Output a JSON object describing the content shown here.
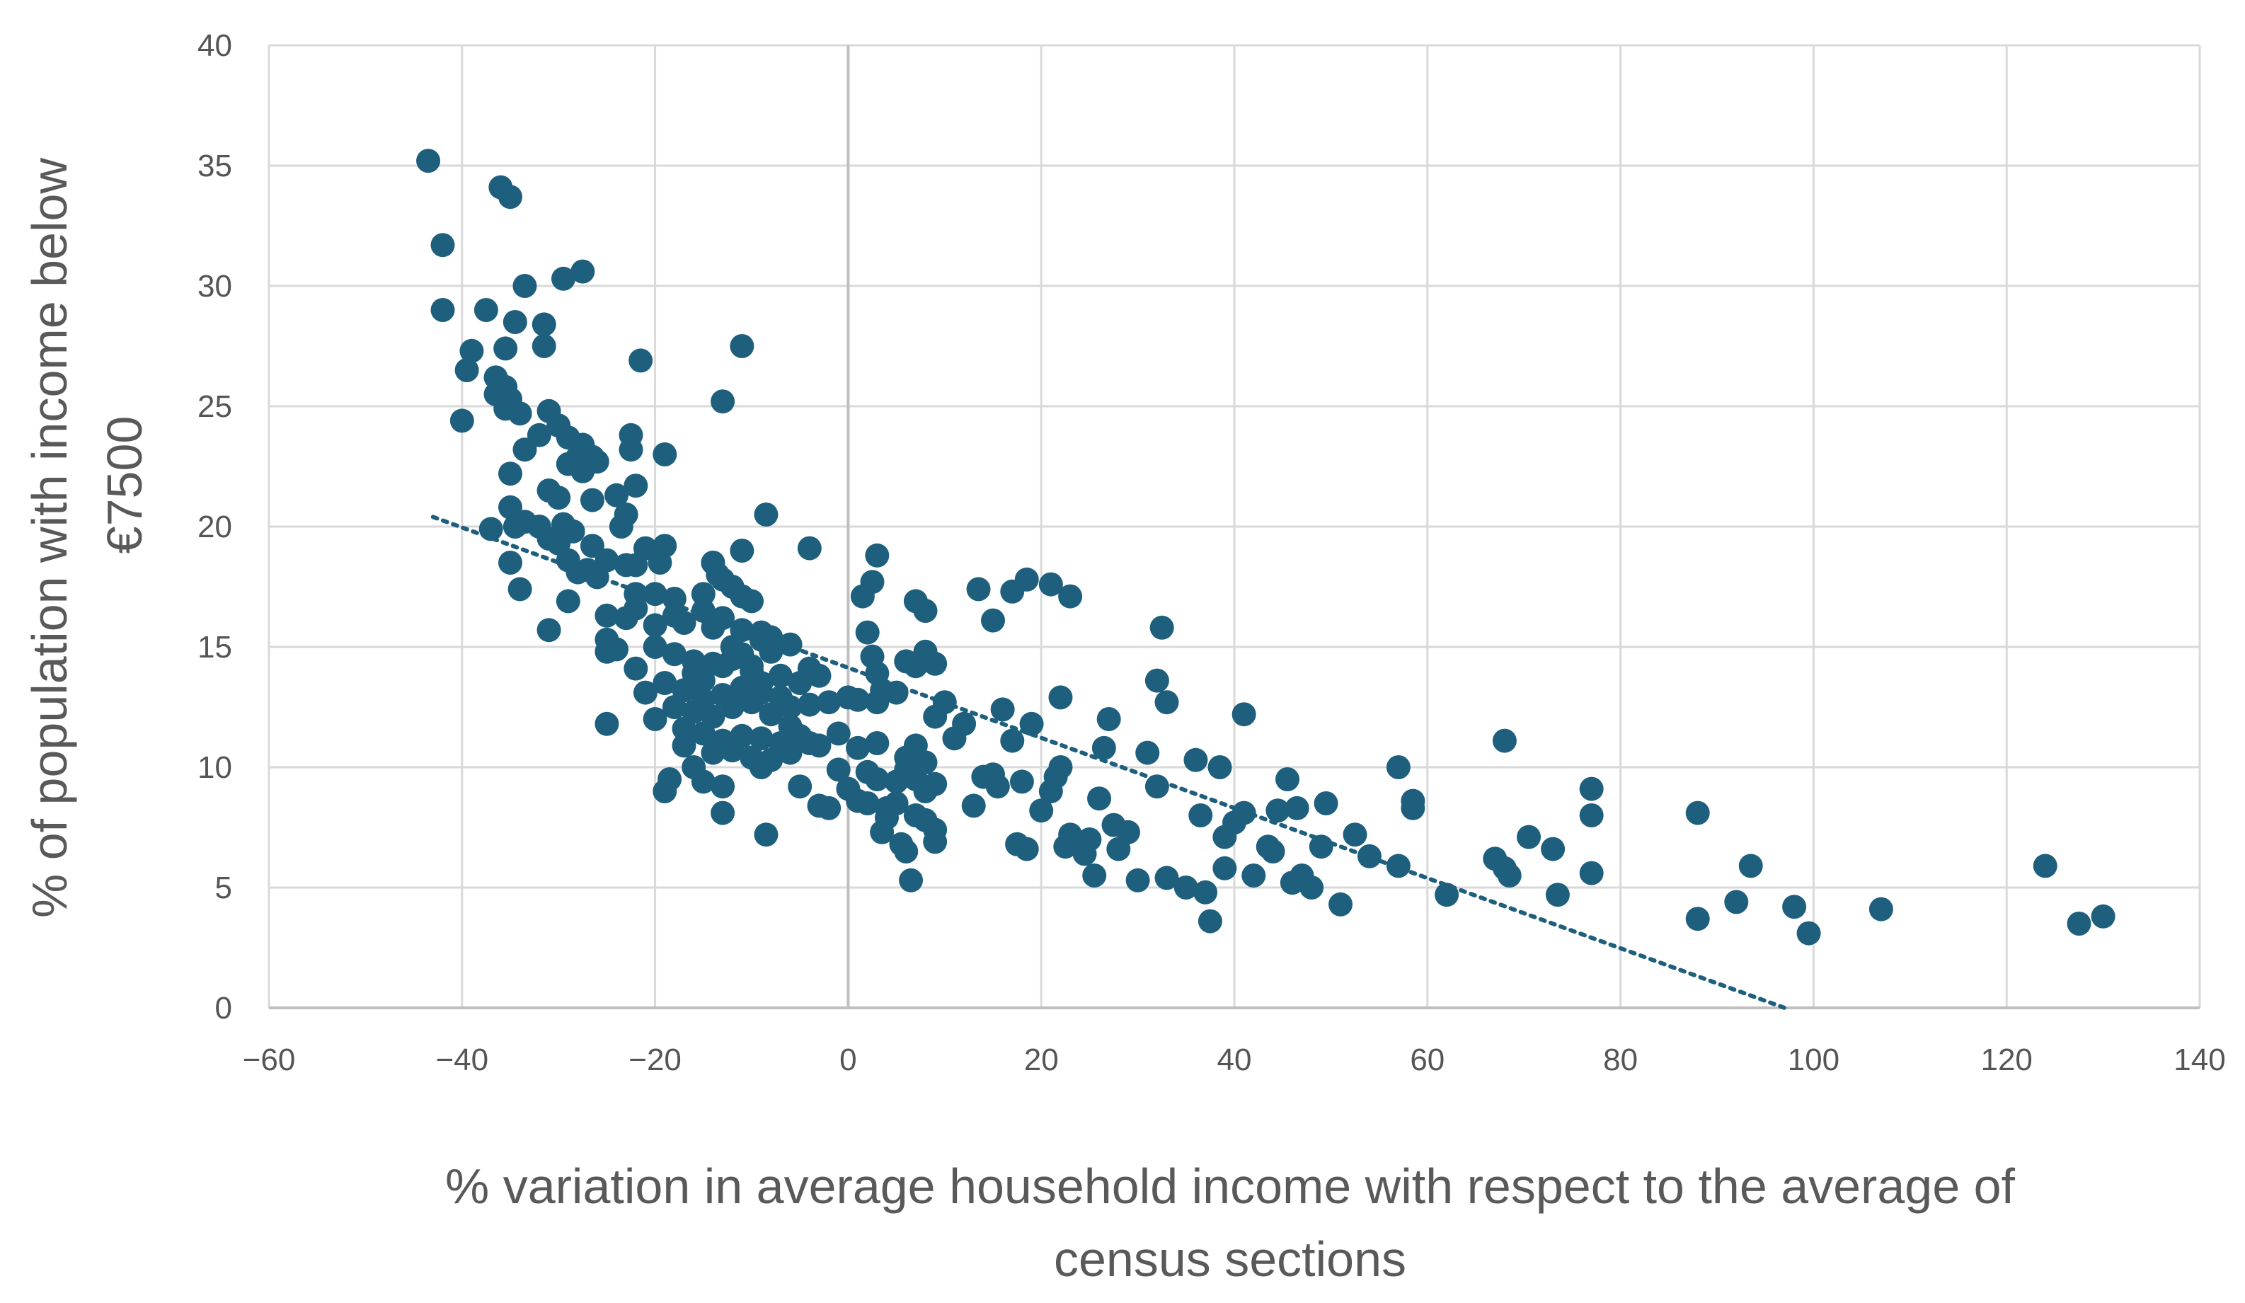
{
  "chart_data": {
    "type": "scatter",
    "title": "",
    "xlabel_lines": [
      "% variation in average household income with respect to the average of",
      "census sections"
    ],
    "ylabel_lines": [
      "% of population with income below",
      "€7500"
    ],
    "xlim": [
      -60,
      140
    ],
    "ylim": [
      0,
      40
    ],
    "xticks": [
      -60,
      -40,
      -20,
      0,
      20,
      40,
      60,
      80,
      100,
      120,
      140
    ],
    "yticks": [
      0,
      5,
      10,
      15,
      20,
      25,
      30,
      35,
      40
    ],
    "xtick_labels": [
      "−60",
      "−40",
      "−20",
      "0",
      "20",
      "40",
      "60",
      "80",
      "100",
      "120",
      "140"
    ],
    "ytick_labels": [
      "0",
      "5",
      "10",
      "15",
      "20",
      "25",
      "30",
      "35",
      "40"
    ],
    "grid": true,
    "legend": "none",
    "marker_color": "#1f5f7e",
    "trendline": {
      "style": "dotted",
      "color": "#1f5f7e",
      "x": [
        -43,
        97
      ],
      "y": [
        20.4,
        0
      ]
    },
    "points": [
      [
        -43.5,
        35.2
      ],
      [
        -42,
        31.7
      ],
      [
        -42,
        29
      ],
      [
        -39,
        27.3
      ],
      [
        -39.5,
        26.5
      ],
      [
        -40,
        24.4
      ],
      [
        -36,
        34.1
      ],
      [
        -35,
        33.7
      ],
      [
        -33.5,
        30
      ],
      [
        -29.5,
        30.3
      ],
      [
        -27.5,
        30.6
      ],
      [
        -37.5,
        29
      ],
      [
        -34.5,
        28.5
      ],
      [
        -31.5,
        28.4
      ],
      [
        -31.5,
        27.5
      ],
      [
        -35.5,
        27.4
      ],
      [
        -36.5,
        26.2
      ],
      [
        -35.5,
        25.8
      ],
      [
        -36.5,
        25.5
      ],
      [
        -35,
        25.3
      ],
      [
        -35.5,
        24.9
      ],
      [
        -34,
        24.7
      ],
      [
        -31,
        24.8
      ],
      [
        -30,
        24.2
      ],
      [
        -32,
        23.8
      ],
      [
        -29,
        23.7
      ],
      [
        -27.5,
        23.4
      ],
      [
        -33.5,
        23.2
      ],
      [
        -28,
        22.9
      ],
      [
        -26.5,
        22.9
      ],
      [
        -26,
        22.7
      ],
      [
        -29,
        22.6
      ],
      [
        -27.5,
        22.3
      ],
      [
        -35,
        22.2
      ],
      [
        -31,
        21.5
      ],
      [
        -30,
        21.2
      ],
      [
        -26.5,
        21.1
      ],
      [
        -24,
        21.3
      ],
      [
        -35,
        20.8
      ],
      [
        -33.5,
        20.2
      ],
      [
        -32,
        20.0
      ],
      [
        -29.5,
        20.1
      ],
      [
        -28.5,
        19.8
      ],
      [
        -37,
        19.9
      ],
      [
        -34.5,
        20.0
      ],
      [
        -31,
        19.5
      ],
      [
        -30,
        19.3
      ],
      [
        -26.5,
        19.2
      ],
      [
        -23,
        20.5
      ],
      [
        -23.5,
        20
      ],
      [
        -21,
        19.1
      ],
      [
        -19,
        19.2
      ],
      [
        -29,
        18.6
      ],
      [
        -27,
        18.2
      ],
      [
        -25,
        18.6
      ],
      [
        -22,
        18.4
      ],
      [
        -19.5,
        18.5
      ],
      [
        -23,
        18.4
      ],
      [
        -28,
        18.1
      ],
      [
        -26,
        17.9
      ],
      [
        -35,
        18.5
      ],
      [
        -34,
        17.4
      ],
      [
        -22,
        17.2
      ],
      [
        -20,
        17.2
      ],
      [
        -18,
        17.0
      ],
      [
        -15,
        17.2
      ],
      [
        -14,
        18.5
      ],
      [
        -13.5,
        18.0
      ],
      [
        -13,
        17.8
      ],
      [
        -12,
        17.5
      ],
      [
        -11,
        17.1
      ],
      [
        -10,
        16.9
      ],
      [
        -29,
        16.9
      ],
      [
        -25,
        16.3
      ],
      [
        -23,
        16.2
      ],
      [
        -22,
        16.6
      ],
      [
        -20,
        15.9
      ],
      [
        -18,
        16.3
      ],
      [
        -17,
        16.0
      ],
      [
        -15,
        16.5
      ],
      [
        -13,
        16.2
      ],
      [
        -11,
        15.7
      ],
      [
        -9,
        15.6
      ],
      [
        -8,
        15.4
      ],
      [
        -31,
        15.7
      ],
      [
        -25,
        15.3
      ],
      [
        -24,
        14.9
      ],
      [
        -20,
        15.0
      ],
      [
        -18,
        14.7
      ],
      [
        -16,
        14.4
      ],
      [
        -14,
        14.3
      ],
      [
        -12,
        14.5
      ],
      [
        -10,
        14.0
      ],
      [
        -8,
        14.8
      ],
      [
        -6,
        15.1
      ],
      [
        -4,
        14.1
      ],
      [
        -25,
        14.8
      ],
      [
        -22,
        14.1
      ],
      [
        -21,
        13.1
      ],
      [
        -19,
        13.5
      ],
      [
        -17,
        13.2
      ],
      [
        -15,
        13.6
      ],
      [
        -13,
        13.0
      ],
      [
        -11,
        13.3
      ],
      [
        -9,
        13.5
      ],
      [
        -7,
        13.8
      ],
      [
        -5,
        13.5
      ],
      [
        -3,
        13.8
      ],
      [
        -20,
        12.0
      ],
      [
        -18,
        12.5
      ],
      [
        -16,
        12.3
      ],
      [
        -14,
        12.1
      ],
      [
        -12,
        12.5
      ],
      [
        -10,
        12.7
      ],
      [
        -8,
        12.2
      ],
      [
        -6,
        12.5
      ],
      [
        -4,
        12.6
      ],
      [
        -2,
        12.7
      ],
      [
        0,
        12.9
      ],
      [
        1,
        12.8
      ],
      [
        -25,
        11.8
      ],
      [
        -17,
        11.6
      ],
      [
        -15,
        11.4
      ],
      [
        -13,
        11.1
      ],
      [
        -11,
        11.3
      ],
      [
        -9,
        11.2
      ],
      [
        -7,
        11.0
      ],
      [
        -5,
        11.3
      ],
      [
        -3,
        10.9
      ],
      [
        -1,
        11.4
      ],
      [
        1,
        10.8
      ],
      [
        3,
        11.0
      ],
      [
        -17,
        10.9
      ],
      [
        -14,
        10.6
      ],
      [
        -12,
        10.7
      ],
      [
        -10,
        10.4
      ],
      [
        -8,
        10.3
      ],
      [
        -6,
        10.6
      ],
      [
        -16,
        10.0
      ],
      [
        -15,
        9.4
      ],
      [
        -13,
        9.2
      ],
      [
        -18.5,
        9.5
      ],
      [
        -19,
        9.0
      ],
      [
        -9,
        10.0
      ],
      [
        -5,
        9.2
      ],
      [
        -3,
        8.4
      ],
      [
        -2,
        8.3
      ],
      [
        0,
        9.1
      ],
      [
        2,
        9.8
      ],
      [
        3,
        9.5
      ],
      [
        -1,
        9.9
      ],
      [
        1,
        8.6
      ],
      [
        2,
        8.5
      ],
      [
        4,
        8.3
      ],
      [
        5,
        8.5
      ],
      [
        6,
        9.9
      ],
      [
        7,
        9.5
      ],
      [
        8,
        9.0
      ],
      [
        9,
        9.3
      ],
      [
        7,
        8.0
      ],
      [
        8,
        7.8
      ],
      [
        9,
        7.4
      ],
      [
        -13,
        8.1
      ],
      [
        -8.5,
        7.2
      ],
      [
        3.5,
        7.3
      ],
      [
        5.5,
        6.8
      ],
      [
        6,
        6.5
      ],
      [
        6.5,
        5.3
      ],
      [
        9,
        6.9
      ],
      [
        4,
        7.9
      ],
      [
        5,
        9.4
      ],
      [
        6,
        10.4
      ],
      [
        7,
        10.9
      ],
      [
        8,
        10.2
      ],
      [
        2,
        15.6
      ],
      [
        2.5,
        14.6
      ],
      [
        3,
        13.9
      ],
      [
        3.5,
        13.2
      ],
      [
        3,
        12.7
      ],
      [
        5,
        13.1
      ],
      [
        6,
        14.4
      ],
      [
        7,
        14.2
      ],
      [
        8,
        14.8
      ],
      [
        9,
        14.3
      ],
      [
        10,
        12.7
      ],
      [
        9,
        12.1
      ],
      [
        1.5,
        17.1
      ],
      [
        2.5,
        17.7
      ],
      [
        3,
        18.8
      ],
      [
        7,
        16.9
      ],
      [
        8,
        16.5
      ],
      [
        -4,
        19.1
      ],
      [
        -11,
        27.5
      ],
      [
        -13,
        25.2
      ],
      [
        -21.5,
        26.9
      ],
      [
        -22.5,
        23.2
      ],
      [
        -22.5,
        23.8
      ],
      [
        -22,
        21.7
      ],
      [
        -19,
        23.0
      ],
      [
        -11,
        19.0
      ],
      [
        -8.5,
        20.5
      ],
      [
        -14,
        18.5
      ],
      [
        11,
        11.2
      ],
      [
        12,
        11.8
      ],
      [
        13,
        8.4
      ],
      [
        14,
        9.6
      ],
      [
        15,
        9.7
      ],
      [
        15.5,
        9.2
      ],
      [
        16,
        12.4
      ],
      [
        17,
        11.1
      ],
      [
        17.5,
        6.8
      ],
      [
        18,
        9.4
      ],
      [
        18.5,
        6.6
      ],
      [
        19,
        11.8
      ],
      [
        20,
        8.2
      ],
      [
        21,
        9.0
      ],
      [
        21.5,
        9.6
      ],
      [
        22,
        10.0
      ],
      [
        22.5,
        6.7
      ],
      [
        22,
        12.9
      ],
      [
        23,
        7.2
      ],
      [
        24,
        6.8
      ],
      [
        24.5,
        6.4
      ],
      [
        25,
        7.0
      ],
      [
        25.5,
        5.5
      ],
      [
        26,
        8.7
      ],
      [
        26.5,
        10.8
      ],
      [
        27,
        12.0
      ],
      [
        27.5,
        7.6
      ],
      [
        28,
        6.6
      ],
      [
        29,
        7.3
      ],
      [
        30,
        5.3
      ],
      [
        31,
        10.6
      ],
      [
        32,
        9.2
      ],
      [
        32,
        13.6
      ],
      [
        32.5,
        15.8
      ],
      [
        33,
        12.7
      ],
      [
        33,
        5.4
      ],
      [
        35,
        5.0
      ],
      [
        36,
        10.3
      ],
      [
        36.5,
        8.0
      ],
      [
        37,
        4.8
      ],
      [
        37.5,
        3.6
      ],
      [
        38.5,
        10.0
      ],
      [
        39,
        7.1
      ],
      [
        39,
        5.8
      ],
      [
        40,
        7.7
      ],
      [
        41,
        12.2
      ],
      [
        41,
        8.1
      ],
      [
        42,
        5.5
      ],
      [
        43.5,
        6.7
      ],
      [
        44,
        6.5
      ],
      [
        44.5,
        8.2
      ],
      [
        45.5,
        9.5
      ],
      [
        46,
        5.2
      ],
      [
        46.5,
        8.3
      ],
      [
        47,
        5.5
      ],
      [
        48,
        5.0
      ],
      [
        49,
        6.7
      ],
      [
        49.5,
        8.5
      ],
      [
        51,
        4.3
      ],
      [
        52.5,
        7.2
      ],
      [
        54,
        6.3
      ],
      [
        57,
        10.0
      ],
      [
        57,
        5.9
      ],
      [
        58.5,
        8.6
      ],
      [
        58.5,
        8.3
      ],
      [
        62,
        4.7
      ],
      [
        67,
        6.2
      ],
      [
        68,
        11.1
      ],
      [
        68,
        5.8
      ],
      [
        68.5,
        5.5
      ],
      [
        70.5,
        7.1
      ],
      [
        73,
        6.6
      ],
      [
        73.5,
        4.7
      ],
      [
        77,
        9.1
      ],
      [
        77,
        8.0
      ],
      [
        77,
        5.6
      ],
      [
        88,
        8.1
      ],
      [
        88,
        3.7
      ],
      [
        92,
        4.4
      ],
      [
        93.5,
        5.9
      ],
      [
        98,
        4.2
      ],
      [
        99.5,
        3.1
      ],
      [
        107,
        4.1
      ],
      [
        124,
        5.9
      ],
      [
        127.5,
        3.5
      ],
      [
        130,
        3.8
      ],
      [
        13.5,
        17.4
      ],
      [
        15,
        16.1
      ],
      [
        17,
        17.3
      ],
      [
        18.5,
        17.8
      ],
      [
        21,
        17.6
      ],
      [
        23,
        17.1
      ],
      [
        -12,
        15.0
      ],
      [
        -10,
        14.2
      ],
      [
        -9,
        13.1
      ],
      [
        -7,
        12.9
      ],
      [
        -6,
        11.7
      ],
      [
        -4,
        11.0
      ],
      [
        -16,
        13.9
      ],
      [
        -15,
        12.8
      ],
      [
        -13,
        14.2
      ],
      [
        -11,
        14.7
      ],
      [
        -9,
        15.3
      ],
      [
        -14,
        15.8
      ]
    ]
  }
}
